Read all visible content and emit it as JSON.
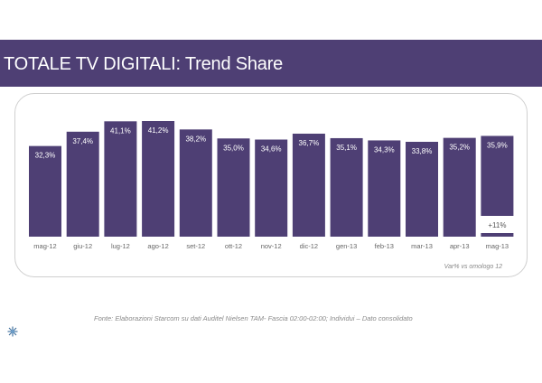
{
  "header": {
    "title": "TOTALE TV DIGITALI: Trend Share"
  },
  "chart_data": {
    "type": "bar",
    "categories": [
      "mag-12",
      "giu-12",
      "lug-12",
      "ago-12",
      "set-12",
      "ott-12",
      "nov-12",
      "dic-12",
      "gen-13",
      "feb-13",
      "mar-13",
      "apr-13",
      "mag-13"
    ],
    "values": [
      32.3,
      37.4,
      41.1,
      41.2,
      38.2,
      35.0,
      34.6,
      36.7,
      35.1,
      34.3,
      33.8,
      35.2,
      35.9
    ],
    "value_labels": [
      "32,3%",
      "37,4%",
      "41,1%",
      "41,2%",
      "38,2%",
      "35,0%",
      "34,6%",
      "36,7%",
      "35,1%",
      "34,3%",
      "33,8%",
      "35,2%",
      "35,9%"
    ],
    "bar_color": "#4e3f74",
    "ylim": [
      0,
      44
    ],
    "grid": false,
    "annotation": "+11%",
    "annotation_note": "Var% vs omologo 12"
  },
  "footer": {
    "source": "Fonte: Elaborazioni Starcom su dati Auditel Nielsen TAM- Fascia 02:00-02:00; Individui – Dato consolidato"
  },
  "colors": {
    "brand": "#4e3f74"
  },
  "icons": {
    "logo": "starcom-star-icon"
  }
}
